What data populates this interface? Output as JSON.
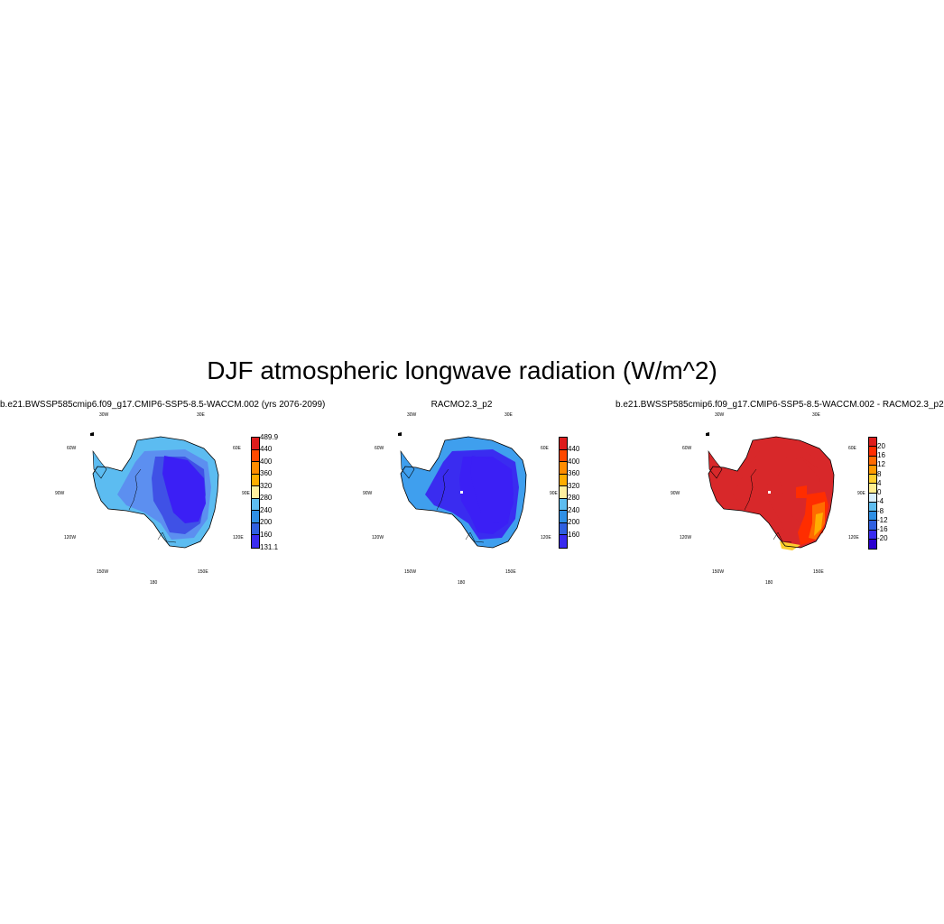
{
  "title": "DJF atmospheric longwave radiation (W/m^2)",
  "lon_labels": [
    "30W",
    "30E",
    "60W",
    "60E",
    "90W",
    "90E",
    "120W",
    "120E",
    "150W",
    "150E",
    "180"
  ],
  "panels": [
    {
      "subtitle": "b.e21.BWSSP585cmip6.f09_g17.CMIP6-SSP5-8.5-WACCM.002 (yrs 2076-2099)",
      "colorbar": {
        "labels": [
          "489.9",
          "440",
          "400",
          "360",
          "320",
          "280",
          "240",
          "200",
          "160",
          "131.1"
        ],
        "colors": [
          "#dd1c1c",
          "#ff4a00",
          "#ff8c00",
          "#ffad00",
          "#fff0a0",
          "#5ebdf0",
          "#2f8fe5",
          "#3060e0",
          "#3a2cf0"
        ]
      },
      "fill": {
        "coast": "#5cbcf1",
        "ring": "#5c8ff0",
        "interior": "#3f51e6",
        "core": "#3b1ff5"
      }
    },
    {
      "subtitle": "RACMO2.3_p2",
      "colorbar": {
        "labels": [
          "440",
          "400",
          "360",
          "320",
          "280",
          "240",
          "200",
          "160"
        ],
        "colors": [
          "#dd1c1c",
          "#ff4a00",
          "#ff8c00",
          "#ffad00",
          "#fff0a0",
          "#5ebdf0",
          "#2f8fe5",
          "#3060e0",
          "#3a2cf0"
        ]
      },
      "fill": {
        "coast": "#3f9fee",
        "ring": "#3a2cf0",
        "interior": "#3b1ff5",
        "core": "#3b1ff5"
      }
    },
    {
      "subtitle": "b.e21.BWSSP585cmip6.f09_g17.CMIP6-SSP5-8.5-WACCM.002 - RACMO2.3_p2",
      "colorbar": {
        "labels": [
          "20",
          "16",
          "12",
          "8",
          "4",
          "0",
          "-4",
          "-8",
          "-12",
          "-16",
          "-20"
        ],
        "colors": [
          "#dd1c1c",
          "#ff2d00",
          "#ff6a00",
          "#ff9a00",
          "#ffcf2e",
          "#ffee90",
          "#d8f0ff",
          "#5ebdf0",
          "#2f8fe5",
          "#3060e0",
          "#3a2cf0",
          "#2a00d0"
        ]
      },
      "fill": {
        "coast": "#d8282a",
        "ring": "#d8282a",
        "interior": "#d8282a",
        "core": "#d8282a"
      }
    }
  ]
}
